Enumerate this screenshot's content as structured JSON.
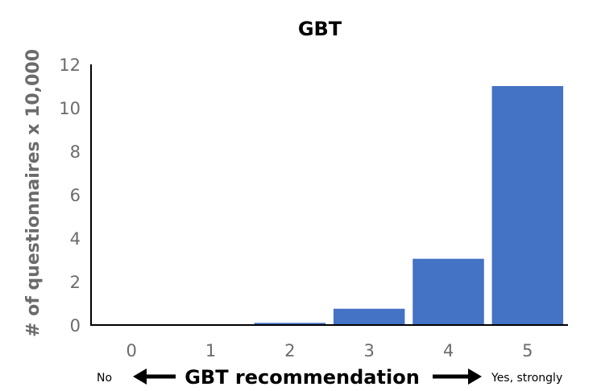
{
  "chart_data": {
    "type": "bar",
    "title": "GBT",
    "ylabel": "# of questionnaires x 10,000",
    "xlabel": "GBT recommendation",
    "x_end_labels": {
      "left": "No",
      "right": "Yes, strongly"
    },
    "categories": [
      "0",
      "1",
      "2",
      "3",
      "4",
      "5"
    ],
    "values": [
      0,
      0,
      0.1,
      0.75,
      3.05,
      11.0
    ],
    "ylim": [
      0,
      12
    ],
    "yticks": [
      "0",
      "2",
      "4",
      "6",
      "8",
      "10",
      "12"
    ],
    "grid": false,
    "colors": {
      "bar": "#4472c4",
      "axis": "#000000",
      "tick_text": "#6b6b6b"
    }
  }
}
